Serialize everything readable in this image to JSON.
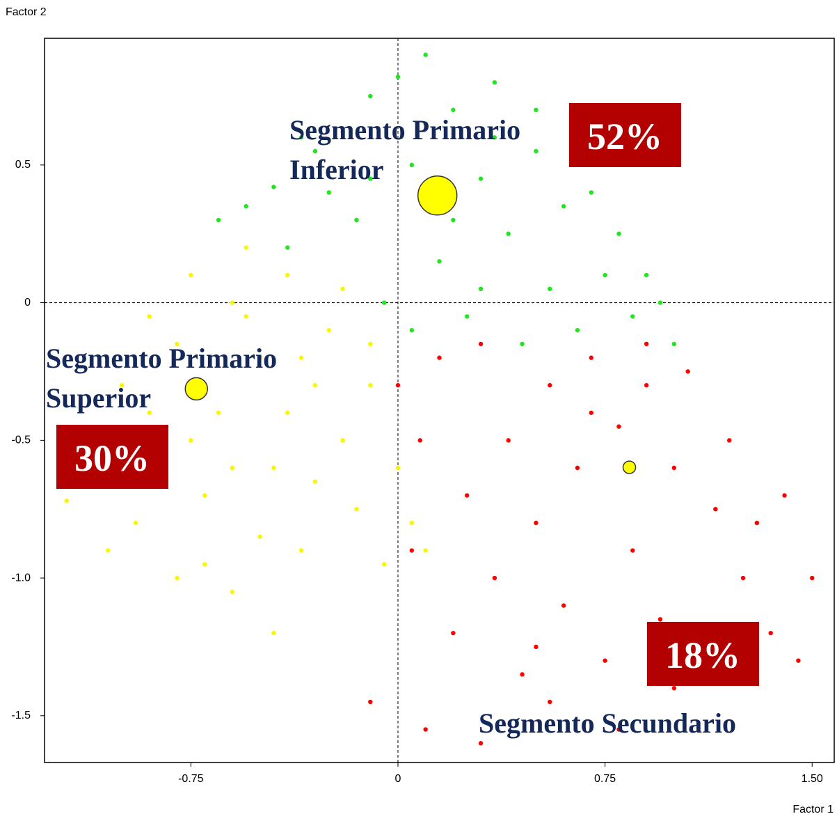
{
  "chart_data": {
    "type": "scatter",
    "xlabel": "Factor 1",
    "ylabel": "Factor 2",
    "xlim": [
      -1.28,
      1.58
    ],
    "ylim": [
      -1.67,
      0.96
    ],
    "xticks": [
      -0.75,
      0,
      0.75,
      {
        "value": 1.5,
        "label": "1.50"
      }
    ],
    "yticks": [
      0.5,
      0,
      -0.5,
      {
        "value": -1.0,
        "label": "-1.0"
      },
      -1.5
    ],
    "zero_lines": true,
    "series": [
      {
        "color": "#20e620",
        "x": [
          -0.65,
          -0.55,
          -0.45,
          -0.4,
          -0.3,
          -0.25,
          -0.2,
          -0.15,
          -0.1,
          -0.05,
          0,
          0.05,
          0.1,
          0.15,
          0.2,
          0.25,
          0.3,
          0.35,
          0.4,
          0.45,
          0.5,
          0.55,
          0.6,
          0.65,
          0.7,
          0.75,
          0.8,
          0.85,
          0.9,
          0.95,
          1.0,
          -0.35,
          -0.1,
          0.05,
          0.2,
          0.35,
          0.5,
          0.65,
          0.3,
          0.1
        ],
        "y": [
          0.3,
          0.35,
          0.42,
          0.2,
          0.55,
          0.4,
          0.62,
          0.3,
          0.75,
          0.0,
          0.82,
          0.5,
          0.9,
          0.15,
          0.7,
          -0.05,
          0.45,
          0.8,
          0.25,
          -0.15,
          0.55,
          0.05,
          0.35,
          -0.1,
          0.4,
          0.1,
          0.25,
          -0.05,
          0.1,
          0.0,
          -0.15,
          0.6,
          0.45,
          -0.1,
          0.3,
          0.6,
          0.7,
          0.55,
          0.05,
          0.65
        ]
      },
      {
        "color": "#f7f700",
        "x": [
          -1.2,
          -1.1,
          -1.05,
          -1.0,
          -0.95,
          -0.9,
          -0.85,
          -0.8,
          -0.75,
          -0.7,
          -0.65,
          -0.6,
          -0.55,
          -0.5,
          -0.45,
          -0.4,
          -0.35,
          -0.3,
          -0.25,
          -0.2,
          -0.15,
          -0.1,
          -0.05,
          0.0,
          0.05,
          0.1,
          -0.9,
          -0.8,
          -0.7,
          -0.6,
          -0.5,
          -0.4,
          -0.3,
          -0.2,
          -0.1,
          -0.6,
          -0.45,
          -0.35,
          -0.75,
          -0.55
        ],
        "y": [
          -0.72,
          -0.6,
          -0.9,
          -0.3,
          -0.8,
          -0.05,
          -0.55,
          -1.0,
          0.1,
          -0.7,
          -0.4,
          -1.05,
          0.2,
          -0.2,
          -0.6,
          0.1,
          -0.9,
          -0.3,
          -0.1,
          -0.5,
          -0.75,
          -0.3,
          -0.95,
          -0.6,
          -0.8,
          -0.9,
          -0.4,
          -0.15,
          -0.95,
          0.0,
          -0.85,
          -0.4,
          -0.65,
          0.05,
          -0.15,
          -0.6,
          -1.2,
          -0.2,
          -0.5,
          -0.05
        ]
      },
      {
        "color": "#ff0000",
        "x": [
          0.0,
          0.05,
          0.1,
          0.15,
          0.2,
          0.25,
          0.3,
          0.35,
          0.4,
          0.45,
          0.5,
          0.55,
          0.6,
          0.65,
          0.7,
          0.75,
          0.8,
          0.85,
          0.9,
          0.95,
          1.0,
          1.05,
          1.1,
          1.15,
          1.2,
          1.25,
          1.3,
          1.35,
          1.4,
          1.45,
          1.5,
          -0.1,
          0.08,
          0.3,
          0.55,
          0.8,
          1.0,
          0.7,
          0.5,
          0.9
        ],
        "y": [
          -0.3,
          -0.9,
          -1.55,
          -0.2,
          -1.2,
          -0.7,
          -0.15,
          -1.0,
          -0.5,
          -1.35,
          -0.8,
          -0.3,
          -1.1,
          -0.6,
          -0.2,
          -1.3,
          -0.45,
          -0.9,
          -0.15,
          -1.15,
          -0.6,
          -0.25,
          -1.25,
          -0.75,
          -0.5,
          -1.0,
          -0.8,
          -1.2,
          -0.7,
          -1.3,
          -1.0,
          -1.45,
          -0.5,
          -1.6,
          -1.45,
          -1.55,
          -1.4,
          -0.4,
          -1.25,
          -0.3
        ]
      }
    ],
    "centroids": {
      "color": "#ffff00",
      "x": [
        0.143,
        -0.73,
        0.838
      ],
      "y": [
        0.389,
        -0.313,
        -0.598
      ],
      "size": [
        28,
        16,
        9
      ]
    },
    "segment_labels": [
      {
        "lines": [
          "Segmento Primario",
          "Inferior"
        ]
      },
      {
        "lines": [
          "Segmento Primario",
          "Superior"
        ]
      },
      {
        "lines": [
          "Segmento Secundario"
        ]
      }
    ],
    "share_labels": [
      {
        "text": "52%"
      },
      {
        "text": "30%"
      },
      {
        "text": "18%"
      }
    ],
    "share_color": "#b30000"
  }
}
